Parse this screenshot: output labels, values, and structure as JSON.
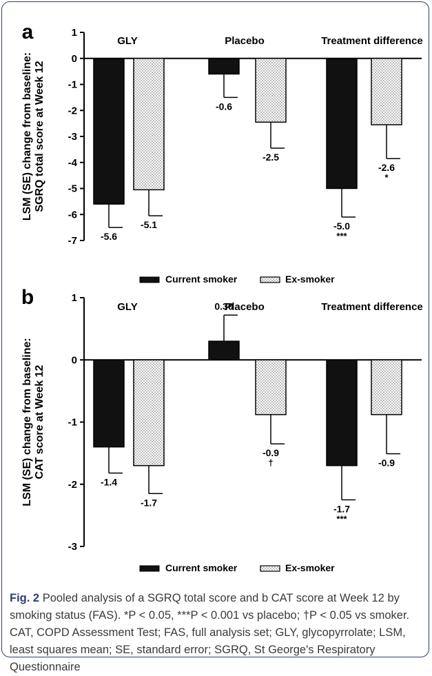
{
  "panels": [
    {
      "letter": "a",
      "ylabel_lines": [
        "LSM (SE) change from baseline:",
        "SGRQ total score at Week 12"
      ],
      "ylim": [
        -7,
        1
      ],
      "ticks": [
        1,
        0,
        -1,
        -2,
        -3,
        -4,
        -5,
        -6,
        -7
      ],
      "groups": [
        "GLY",
        "Placebo",
        "Treatment difference"
      ],
      "legend": [
        "Current smoker",
        "Ex-smoker"
      ]
    },
    {
      "letter": "b",
      "ylabel_lines": [
        "LSM (SE) change from baseline:",
        "CAT score at Week 12"
      ],
      "ylim": [
        -3,
        1
      ],
      "ticks": [
        1,
        0,
        -1,
        -2,
        -3
      ],
      "groups": [
        "GLY",
        "Placebo",
        "Treatment difference"
      ],
      "legend": [
        "Current smoker",
        "Ex-smoker"
      ]
    }
  ],
  "chart_data": [
    {
      "type": "bar",
      "panel": "a",
      "categories": [
        "GLY",
        "Placebo",
        "Treatment difference"
      ],
      "series": [
        {
          "name": "Current smoker",
          "values": [
            -5.6,
            -0.6,
            -5.0
          ],
          "se": [
            0.9,
            0.9,
            1.1
          ],
          "labels": [
            "-5.6",
            "-0.6",
            "-5.0"
          ],
          "sig": [
            "",
            "",
            "***"
          ],
          "fill": "#111111"
        },
        {
          "name": "Ex-smoker",
          "values": [
            -5.05,
            -2.45,
            -2.55
          ],
          "se": [
            1.0,
            1.0,
            1.3
          ],
          "labels": [
            "-5.1",
            "-2.5",
            "-2.6"
          ],
          "sig": [
            "",
            "",
            "*"
          ],
          "fill": "dots"
        }
      ],
      "ylabel": "LSM (SE) change from baseline: SGRQ total score at Week 12",
      "ylim": [
        -7,
        1
      ]
    },
    {
      "type": "bar",
      "panel": "b",
      "categories": [
        "GLY",
        "Placebo",
        "Treatment difference"
      ],
      "series": [
        {
          "name": "Current smoker",
          "values": [
            -1.4,
            0.3,
            -1.7
          ],
          "se": [
            0.42,
            0.42,
            0.55
          ],
          "labels": [
            "-1.4",
            "0.30",
            "-1.7"
          ],
          "sig": [
            "",
            "",
            "***"
          ],
          "fill": "#111111"
        },
        {
          "name": "Ex-smoker",
          "values": [
            -1.7,
            -0.88,
            -0.88
          ],
          "se": [
            0.45,
            0.47,
            0.63
          ],
          "labels": [
            "-1.7",
            "-0.9",
            "-0.9"
          ],
          "sig": [
            "",
            "†",
            ""
          ],
          "fill": "dots"
        }
      ],
      "ylabel": "LSM (SE) change from baseline: CAT score at Week 12",
      "ylim": [
        -3,
        1
      ]
    }
  ],
  "caption": {
    "figure_label": "Fig. 2",
    "text": "Pooled analysis of a SGRQ total score and b CAT score at Week 12 by smoking status (FAS). *P < 0.05, ***P < 0.001 vs placebo; †P < 0.05 vs smoker. CAT, COPD Assessment Test; FAS, full analysis set; GLY, glycopyrrolate; LSM, least squares mean; SE, standard error; SGRQ, St George's Respiratory Questionnaire"
  }
}
